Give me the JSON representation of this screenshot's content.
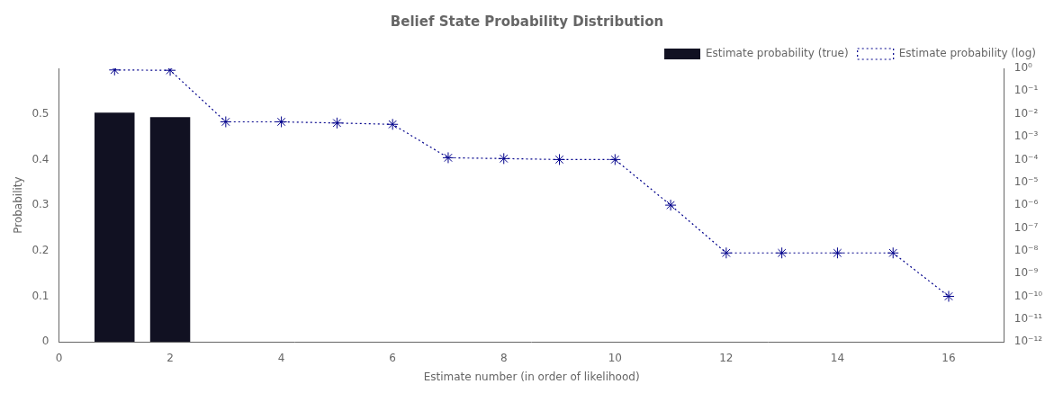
{
  "chart_data": {
    "type": "bar",
    "title": "Belief State Probability Distribution",
    "xlabel": "Estimate number (in order of likelihood)",
    "ylabel": "Probability",
    "xlim": [
      0,
      17
    ],
    "xticks": [
      0,
      2,
      4,
      6,
      8,
      10,
      12,
      14,
      16
    ],
    "ylim": [
      0,
      0.6
    ],
    "yticks": [
      0,
      0.1,
      0.2,
      0.3,
      0.4,
      0.5
    ],
    "y2lim": [
      1e-12,
      1
    ],
    "y2ticks": [
      {
        "value": 1e-12,
        "label": "10⁻¹²"
      },
      {
        "value": 1e-11,
        "label": "10⁻¹¹"
      },
      {
        "value": 1e-10,
        "label": "10⁻¹⁰"
      },
      {
        "value": 1e-09,
        "label": "10⁻⁹"
      },
      {
        "value": 1e-08,
        "label": "10⁻⁸"
      },
      {
        "value": 1e-07,
        "label": "10⁻⁷"
      },
      {
        "value": 1e-06,
        "label": "10⁻⁶"
      },
      {
        "value": 1e-05,
        "label": "10⁻⁵"
      },
      {
        "value": 0.0001,
        "label": "10⁻⁴"
      },
      {
        "value": 0.001,
        "label": "10⁻³"
      },
      {
        "value": 0.01,
        "label": "10⁻²"
      },
      {
        "value": 0.1,
        "label": "10⁻¹"
      },
      {
        "value": 1,
        "label": "10⁰"
      }
    ],
    "log": "y2",
    "grid": false,
    "legend": "upper right",
    "series": [
      {
        "name": "Estimate probability (true)",
        "type": "bar",
        "color": "#111122",
        "x": [
          1,
          2
        ],
        "values": [
          0.5031,
          0.4931
        ]
      },
      {
        "name": "Estimate probability (log)",
        "type": "line",
        "color": "#00008B",
        "axis": "y2",
        "marker": "star",
        "line_style": "dotted",
        "x": [
          1,
          2,
          3,
          4,
          5,
          6,
          7,
          8,
          9,
          10,
          11,
          12,
          13,
          14,
          15,
          16
        ],
        "values": [
          0.85,
          0.82,
          0.0045,
          0.0045,
          0.004,
          0.0035,
          0.00012,
          0.00011,
          0.0001,
          0.0001,
          1e-06,
          8e-09,
          8e-09,
          8e-09,
          8e-09,
          1e-10
        ]
      }
    ]
  }
}
